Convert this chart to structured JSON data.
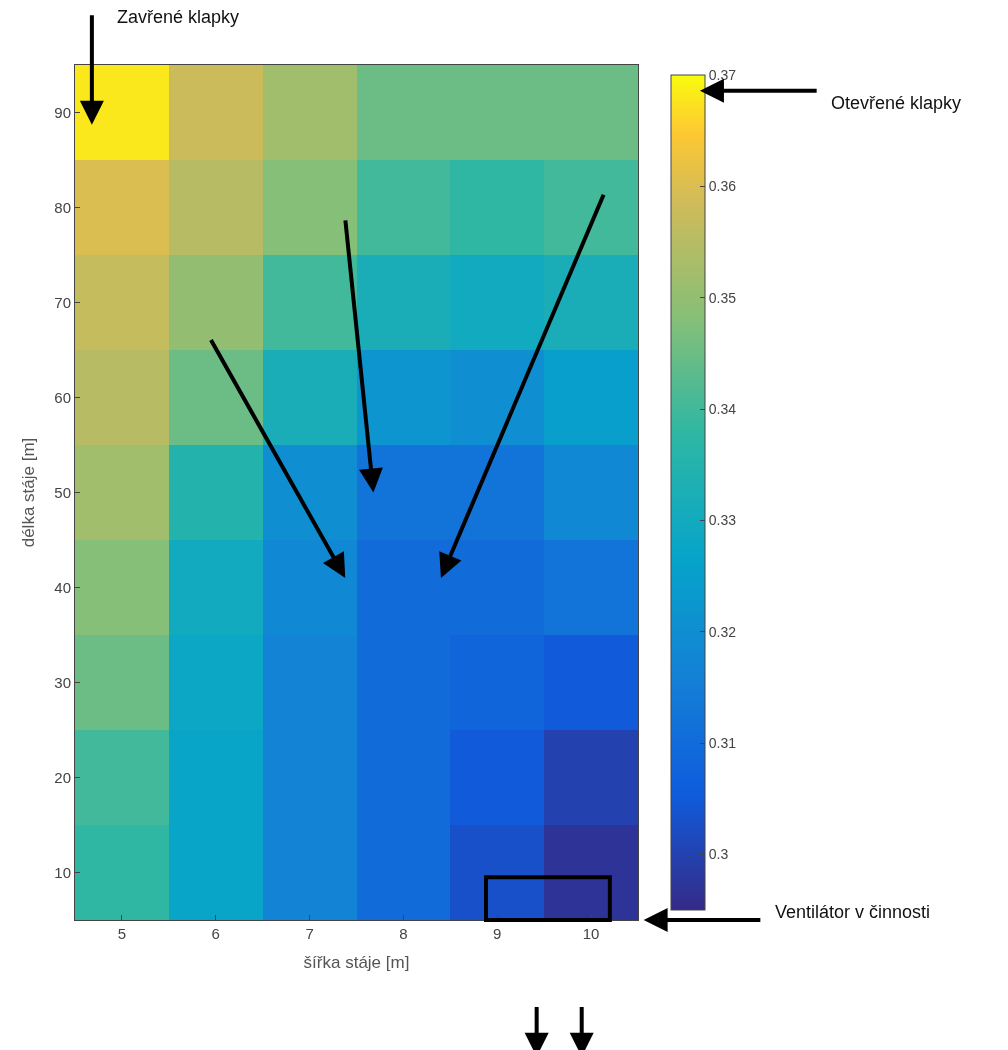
{
  "chart_data": {
    "type": "heatmap",
    "xlabel": "šířka stáje [m]",
    "ylabel": "délka stáje [m]",
    "categories": [
      "5",
      "6",
      "7",
      "8",
      "9",
      "10"
    ],
    "y_categories": [
      "90",
      "80",
      "70",
      "60",
      "50",
      "40",
      "30",
      "20",
      "10"
    ],
    "cells": [
      [
        0.368,
        0.358,
        0.352,
        0.345,
        0.345,
        0.345
      ],
      [
        0.36,
        0.355,
        0.348,
        0.34,
        0.338,
        0.34
      ],
      [
        0.357,
        0.35,
        0.34,
        0.332,
        0.33,
        0.332
      ],
      [
        0.355,
        0.345,
        0.332,
        0.322,
        0.32,
        0.325
      ],
      [
        0.352,
        0.335,
        0.32,
        0.312,
        0.312,
        0.318
      ],
      [
        0.348,
        0.33,
        0.318,
        0.31,
        0.31,
        0.312
      ],
      [
        0.345,
        0.328,
        0.317,
        0.31,
        0.308,
        0.305
      ],
      [
        0.34,
        0.327,
        0.317,
        0.31,
        0.305,
        0.3
      ],
      [
        0.338,
        0.327,
        0.317,
        0.31,
        0.303,
        0.297
      ]
    ],
    "clim": [
      0.295,
      0.37
    ],
    "cticks": [
      0.3,
      0.31,
      0.32,
      0.33,
      0.34,
      0.35,
      0.36,
      0.37
    ],
    "annotations": [
      "Zavřené klapky",
      "Otevřené klapky",
      "Ventilátor v činnosti"
    ]
  }
}
